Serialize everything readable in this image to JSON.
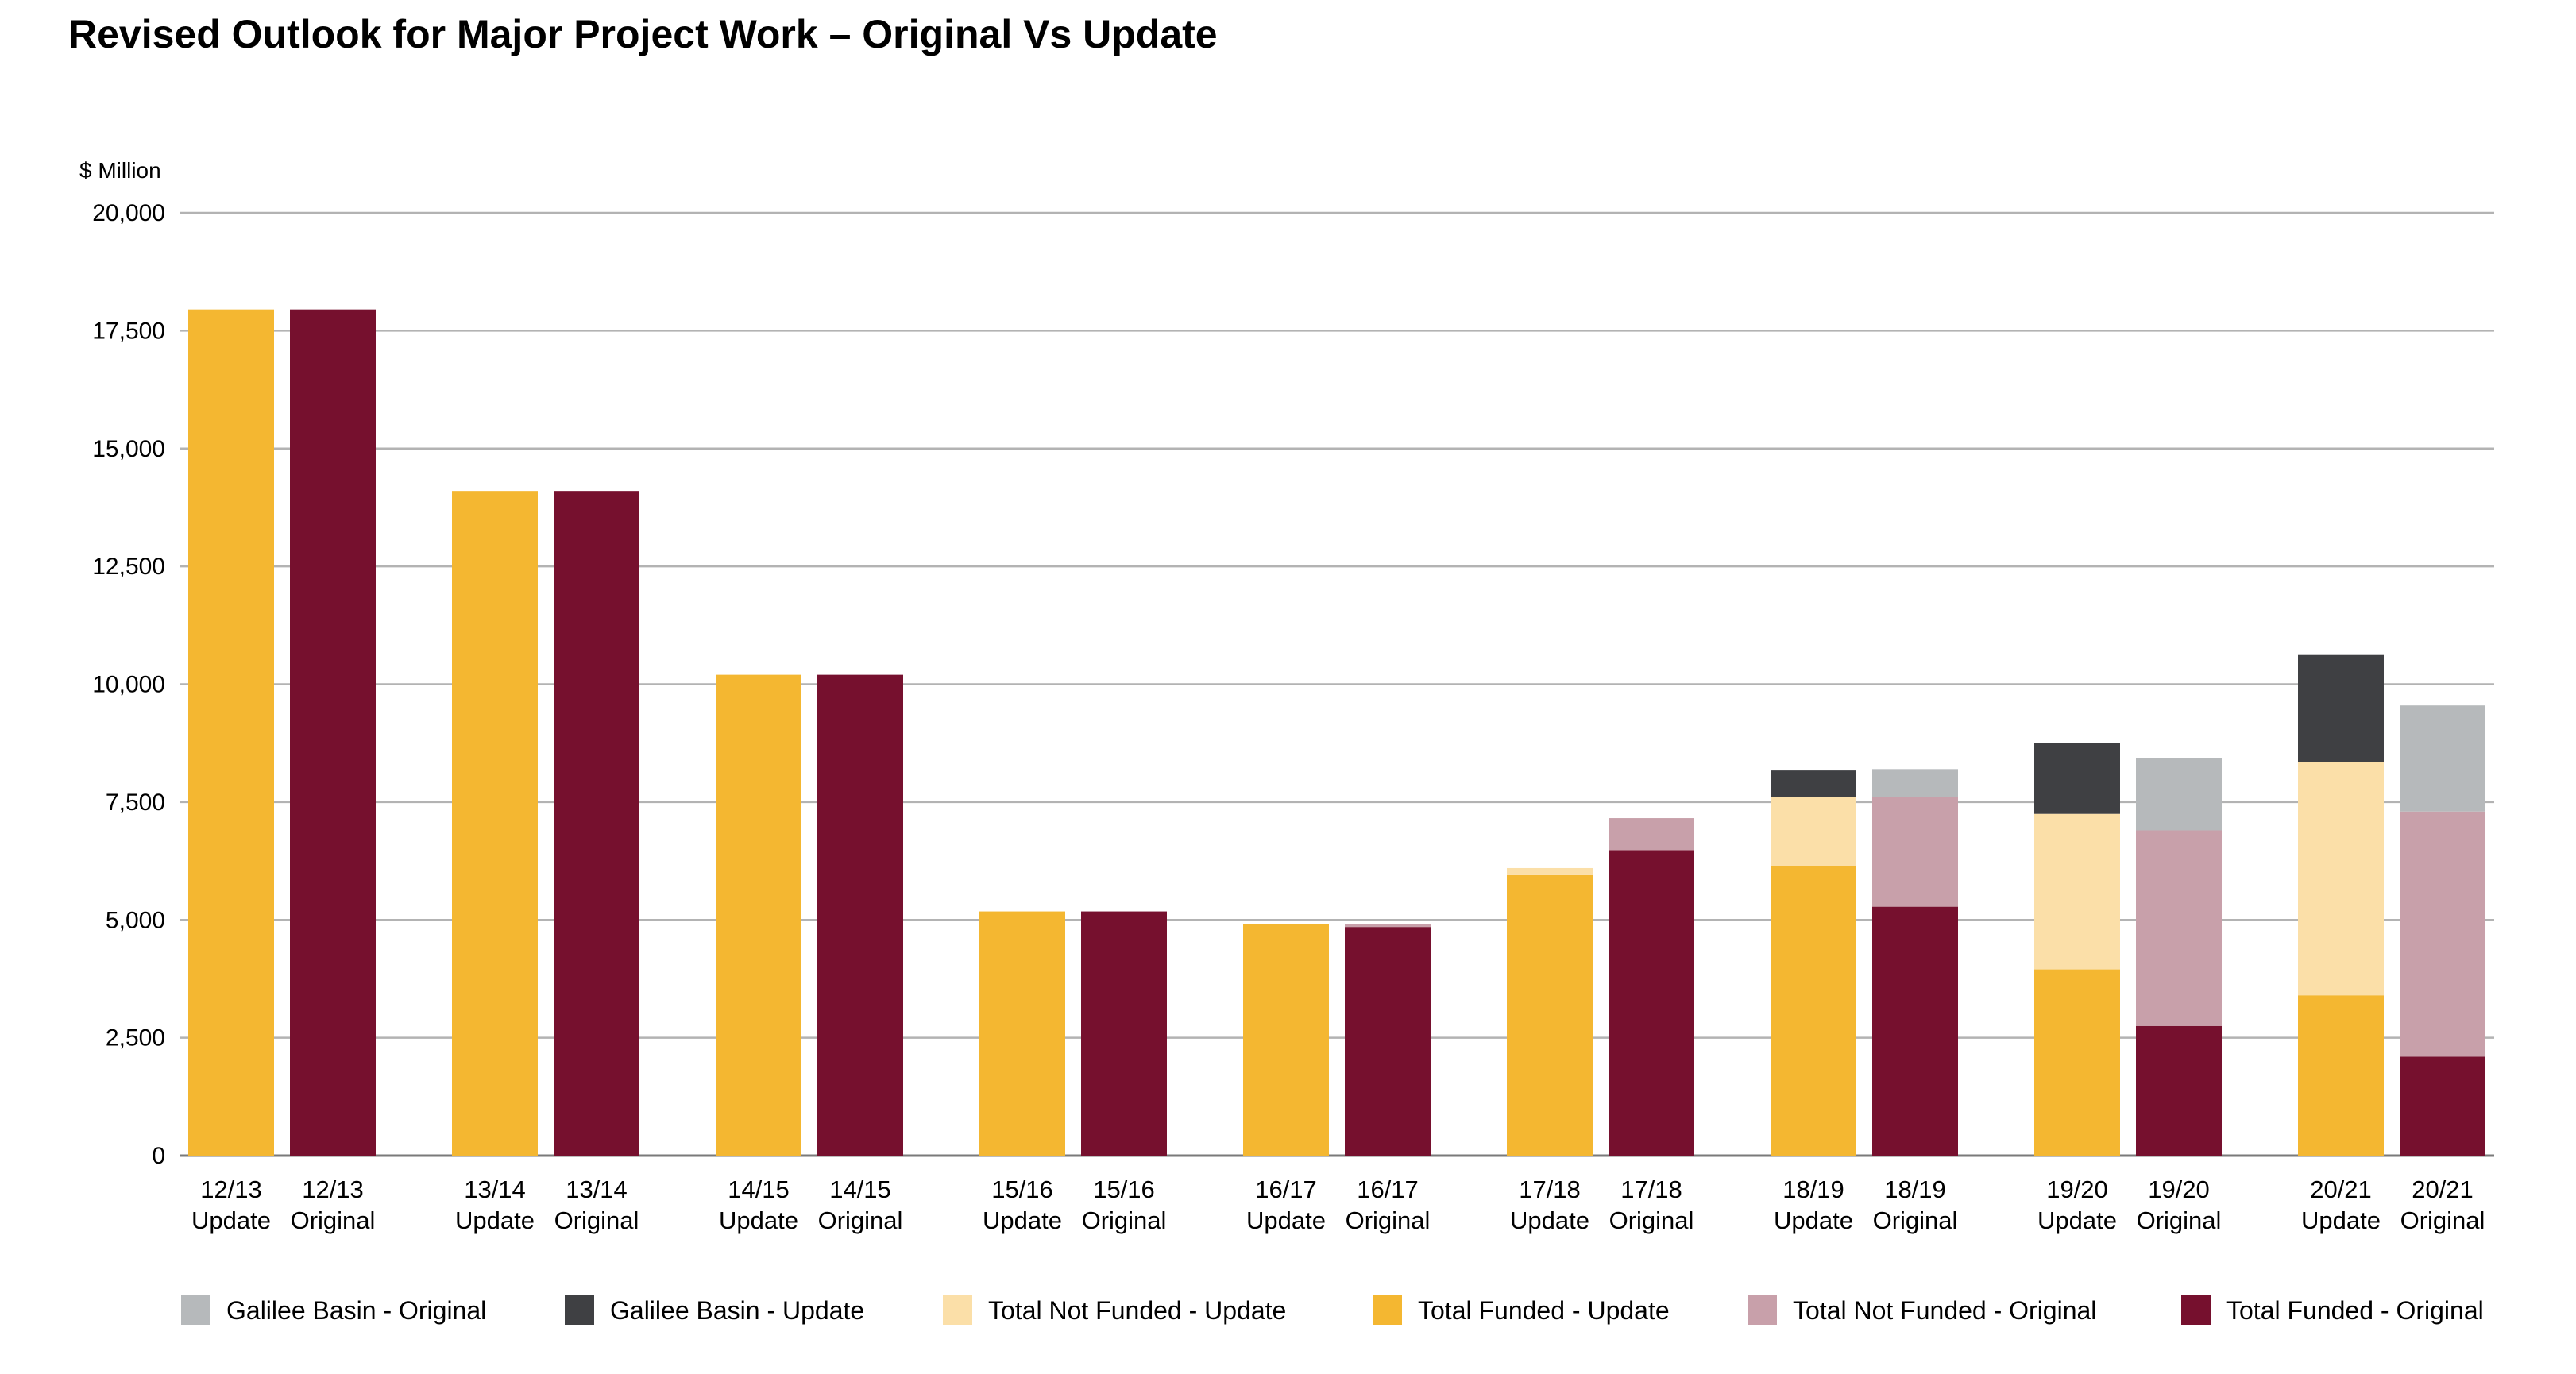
{
  "chart_data": {
    "type": "bar",
    "title": "Revised Outlook for Major Project Work – Original Vs Update",
    "ylabel": "$ Million",
    "xlabel": "",
    "ylim": [
      0,
      20000
    ],
    "yticks": [
      0,
      2500,
      5000,
      7500,
      10000,
      12500,
      15000,
      17500,
      20000
    ],
    "ytick_labels": [
      "0",
      "2,500",
      "5,000",
      "7,500",
      "10,000",
      "12,500",
      "15,000",
      "17,500",
      "20,000"
    ],
    "grid": true,
    "legend_position": "bottom",
    "stacked": true,
    "categories": [
      {
        "year": "12/13",
        "variant": "Update"
      },
      {
        "year": "12/13",
        "variant": "Original"
      },
      {
        "year": "13/14",
        "variant": "Update"
      },
      {
        "year": "13/14",
        "variant": "Original"
      },
      {
        "year": "14/15",
        "variant": "Update"
      },
      {
        "year": "14/15",
        "variant": "Original"
      },
      {
        "year": "15/16",
        "variant": "Update"
      },
      {
        "year": "15/16",
        "variant": "Original"
      },
      {
        "year": "16/17",
        "variant": "Update"
      },
      {
        "year": "16/17",
        "variant": "Original"
      },
      {
        "year": "17/18",
        "variant": "Update"
      },
      {
        "year": "17/18",
        "variant": "Original"
      },
      {
        "year": "18/19",
        "variant": "Update"
      },
      {
        "year": "18/19",
        "variant": "Original"
      },
      {
        "year": "19/20",
        "variant": "Update"
      },
      {
        "year": "19/20",
        "variant": "Original"
      },
      {
        "year": "20/21",
        "variant": "Update"
      },
      {
        "year": "20/21",
        "variant": "Original"
      }
    ],
    "series": [
      {
        "name": "Total Funded - Update",
        "color": "#F4B731",
        "values": [
          17950,
          0,
          14100,
          0,
          10200,
          0,
          5180,
          0,
          4920,
          0,
          5950,
          0,
          6150,
          0,
          3950,
          0,
          3400,
          0
        ]
      },
      {
        "name": "Total Funded - Original",
        "color": "#76102E",
        "values": [
          0,
          17950,
          0,
          14100,
          0,
          10200,
          0,
          5180,
          0,
          4850,
          0,
          6480,
          0,
          5280,
          0,
          2750,
          0,
          2100
        ]
      },
      {
        "name": "Total Not Funded - Update",
        "color": "#FBDFA8",
        "values": [
          0,
          0,
          0,
          0,
          0,
          0,
          0,
          0,
          0,
          0,
          150,
          0,
          1450,
          0,
          3300,
          0,
          4950,
          0
        ]
      },
      {
        "name": "Total Not Funded - Original",
        "color": "#C8A0AA",
        "values": [
          0,
          0,
          0,
          0,
          0,
          0,
          0,
          0,
          0,
          70,
          0,
          680,
          0,
          2320,
          0,
          4150,
          0,
          5200
        ]
      },
      {
        "name": "Galilee Basin - Update",
        "color": "#3F4043",
        "values": [
          0,
          0,
          0,
          0,
          0,
          0,
          0,
          0,
          0,
          0,
          0,
          0,
          570,
          0,
          1500,
          0,
          2270,
          0
        ]
      },
      {
        "name": "Galilee Basin - Original",
        "color": "#B6B9BB",
        "values": [
          0,
          0,
          0,
          0,
          0,
          0,
          0,
          0,
          0,
          0,
          0,
          0,
          0,
          600,
          0,
          1530,
          0,
          2250
        ]
      }
    ],
    "legend_order": [
      "Galilee Basin - Original",
      "Galilee Basin - Update",
      "Total Not Funded - Update",
      "Total Funded - Update",
      "Total Not Funded - Original",
      "Total Funded - Original"
    ]
  }
}
